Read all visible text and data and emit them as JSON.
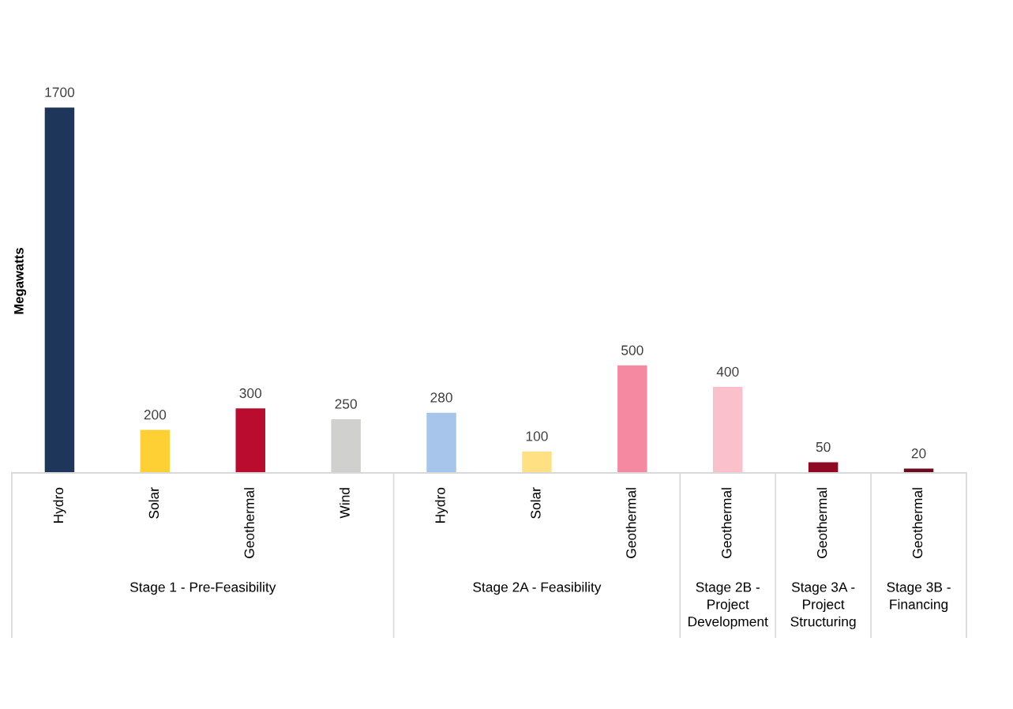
{
  "chart_data": {
    "type": "bar",
    "ylabel": "Megawatts",
    "categories": [
      "Hydro",
      "Solar",
      "Geothermal",
      "Wind",
      "Hydro",
      "Solar",
      "Geothermal",
      "Geothermal",
      "Geothermal",
      "Geothermal"
    ],
    "values": [
      1700,
      200,
      300,
      250,
      280,
      100,
      500,
      400,
      50,
      20
    ],
    "colors": [
      "#1d3659",
      "#ffd033",
      "#b90c2f",
      "#d0d0ce",
      "#a7c5ea",
      "#ffe184",
      "#f589a1",
      "#fac1cd",
      "#8e0a24",
      "#6b0c1e"
    ],
    "annotations": [
      "Stage 1 - Pre-Feasibility",
      "Stage 2A - Feasibility",
      "Stage 2B - Project Development",
      "Stage 3A - Project Structuring",
      "Stage 3B - Financing"
    ],
    "tick_labels": "x",
    "data_labels": true
  }
}
